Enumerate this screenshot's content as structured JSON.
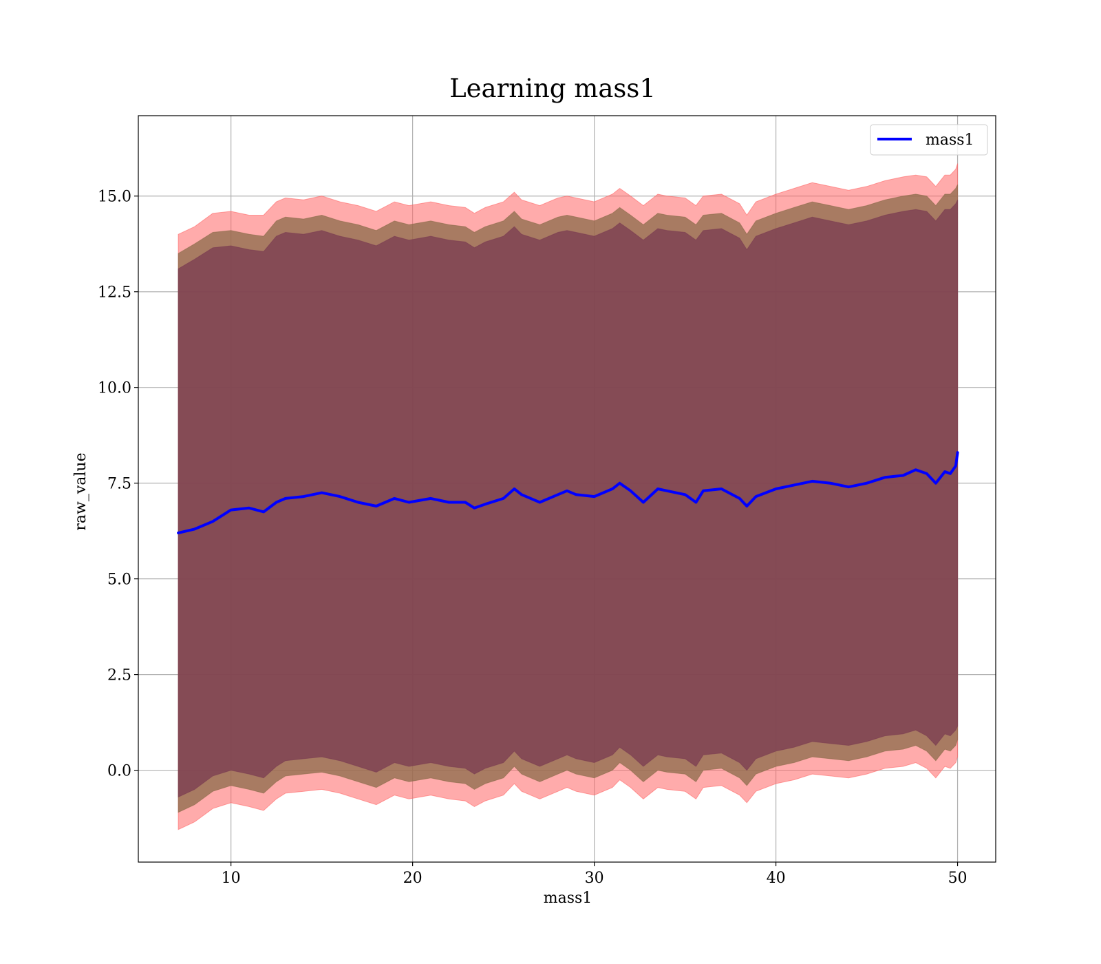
{
  "chart_data": {
    "type": "area",
    "title": "Learning mass1",
    "xlabel": "mass1",
    "ylabel": "raw_value",
    "xlim": [
      4.9,
      52.1
    ],
    "ylim": [
      -2.4,
      17.1
    ],
    "x_ticks": [
      10,
      20,
      30,
      40,
      50
    ],
    "y_ticks": [
      0.0,
      2.5,
      5.0,
      7.5,
      10.0,
      12.5,
      15.0
    ],
    "x_tick_labels": [
      "10",
      "20",
      "30",
      "40",
      "50"
    ],
    "y_tick_labels": [
      "0.0",
      "2.5",
      "5.0",
      "7.5",
      "10.0",
      "12.5",
      "15.0"
    ],
    "grid": true,
    "legend_position": "top-right",
    "x": [
      7.1,
      8,
      9,
      10,
      11,
      11.8,
      12.5,
      13,
      14,
      15,
      16,
      17,
      18,
      19,
      19.8,
      21,
      22,
      22.9,
      23.4,
      24,
      25,
      25.6,
      26,
      27,
      28,
      28.5,
      29,
      30,
      31,
      31.4,
      32,
      32.7,
      33.5,
      34,
      35,
      35.6,
      36,
      37,
      38,
      38.4,
      38.9,
      40,
      41,
      42,
      43,
      44,
      45,
      46,
      47,
      47.7,
      48.3,
      48.8,
      49.3,
      49.6,
      49.9,
      50
    ],
    "series": [
      {
        "name": "mass1",
        "color": "#0000ff",
        "values": [
          6.2,
          6.3,
          6.5,
          6.8,
          6.85,
          6.75,
          7.0,
          7.1,
          7.15,
          7.25,
          7.15,
          7.0,
          6.9,
          7.1,
          7.0,
          7.1,
          7.0,
          7.0,
          6.85,
          6.95,
          7.1,
          7.35,
          7.2,
          7.0,
          7.2,
          7.3,
          7.2,
          7.15,
          7.35,
          7.5,
          7.3,
          7.0,
          7.35,
          7.3,
          7.2,
          7.0,
          7.3,
          7.35,
          7.1,
          6.9,
          7.15,
          7.35,
          7.45,
          7.55,
          7.5,
          7.4,
          7.5,
          7.65,
          7.7,
          7.85,
          7.75,
          7.5,
          7.8,
          7.75,
          7.95,
          8.3
        ]
      }
    ],
    "bands": [
      {
        "color": "#ff6666",
        "upper": [
          14.0,
          14.2,
          14.55,
          14.6,
          14.5,
          14.5,
          14.85,
          14.95,
          14.9,
          15.0,
          14.85,
          14.75,
          14.6,
          14.85,
          14.75,
          14.85,
          14.75,
          14.7,
          14.55,
          14.7,
          14.85,
          15.1,
          14.9,
          14.75,
          14.95,
          15.0,
          14.95,
          14.85,
          15.05,
          15.2,
          15.0,
          14.75,
          15.05,
          15.0,
          14.95,
          14.75,
          15.0,
          15.05,
          14.8,
          14.5,
          14.85,
          15.05,
          15.2,
          15.35,
          15.25,
          15.15,
          15.25,
          15.4,
          15.5,
          15.55,
          15.5,
          15.25,
          15.55,
          15.55,
          15.7,
          15.85
        ],
        "lower": [
          -1.55,
          -1.35,
          -1.0,
          -0.85,
          -0.95,
          -1.05,
          -0.75,
          -0.6,
          -0.55,
          -0.5,
          -0.6,
          -0.75,
          -0.9,
          -0.65,
          -0.75,
          -0.65,
          -0.75,
          -0.8,
          -0.95,
          -0.8,
          -0.65,
          -0.35,
          -0.55,
          -0.75,
          -0.55,
          -0.45,
          -0.55,
          -0.65,
          -0.45,
          -0.25,
          -0.45,
          -0.75,
          -0.45,
          -0.5,
          -0.55,
          -0.75,
          -0.45,
          -0.4,
          -0.65,
          -0.85,
          -0.55,
          -0.35,
          -0.25,
          -0.1,
          -0.15,
          -0.2,
          -0.1,
          0.05,
          0.1,
          0.2,
          0.05,
          -0.2,
          0.1,
          0.05,
          0.2,
          0.35
        ]
      },
      {
        "color": "#8b6b4a",
        "upper": [
          13.5,
          13.75,
          14.05,
          14.1,
          14.0,
          13.95,
          14.35,
          14.45,
          14.4,
          14.5,
          14.35,
          14.25,
          14.1,
          14.35,
          14.25,
          14.35,
          14.25,
          14.2,
          14.05,
          14.2,
          14.35,
          14.6,
          14.4,
          14.25,
          14.45,
          14.5,
          14.45,
          14.35,
          14.55,
          14.7,
          14.5,
          14.25,
          14.55,
          14.5,
          14.45,
          14.25,
          14.5,
          14.55,
          14.3,
          14.0,
          14.35,
          14.55,
          14.7,
          14.85,
          14.75,
          14.65,
          14.75,
          14.9,
          15.0,
          15.05,
          15.0,
          14.75,
          15.05,
          15.05,
          15.2,
          15.3
        ],
        "lower": [
          -1.1,
          -0.9,
          -0.55,
          -0.4,
          -0.5,
          -0.6,
          -0.3,
          -0.15,
          -0.1,
          -0.05,
          -0.15,
          -0.3,
          -0.45,
          -0.2,
          -0.3,
          -0.2,
          -0.3,
          -0.35,
          -0.5,
          -0.35,
          -0.2,
          0.1,
          -0.1,
          -0.3,
          -0.1,
          0.0,
          -0.1,
          -0.2,
          0.0,
          0.2,
          0.0,
          -0.3,
          0.0,
          -0.05,
          -0.1,
          -0.3,
          0.0,
          0.05,
          -0.2,
          -0.4,
          -0.1,
          0.1,
          0.2,
          0.35,
          0.3,
          0.25,
          0.35,
          0.5,
          0.55,
          0.65,
          0.5,
          0.25,
          0.55,
          0.5,
          0.65,
          0.8
        ]
      },
      {
        "color": "#7a3b52",
        "upper": [
          13.1,
          13.35,
          13.65,
          13.7,
          13.6,
          13.55,
          13.95,
          14.05,
          14.0,
          14.1,
          13.95,
          13.85,
          13.7,
          13.95,
          13.85,
          13.95,
          13.85,
          13.8,
          13.65,
          13.8,
          13.95,
          14.2,
          14.0,
          13.85,
          14.05,
          14.1,
          14.05,
          13.95,
          14.15,
          14.3,
          14.1,
          13.85,
          14.15,
          14.1,
          14.05,
          13.85,
          14.1,
          14.15,
          13.9,
          13.6,
          13.95,
          14.15,
          14.3,
          14.45,
          14.35,
          14.25,
          14.35,
          14.5,
          14.6,
          14.65,
          14.6,
          14.35,
          14.65,
          14.65,
          14.8,
          14.9
        ],
        "lower": [
          -0.7,
          -0.5,
          -0.15,
          0.0,
          -0.1,
          -0.2,
          0.1,
          0.25,
          0.3,
          0.35,
          0.25,
          0.1,
          -0.05,
          0.2,
          0.1,
          0.2,
          0.1,
          0.05,
          -0.1,
          0.05,
          0.2,
          0.5,
          0.3,
          0.1,
          0.3,
          0.4,
          0.3,
          0.2,
          0.4,
          0.6,
          0.4,
          0.1,
          0.4,
          0.35,
          0.3,
          0.1,
          0.4,
          0.45,
          0.2,
          0.0,
          0.3,
          0.5,
          0.6,
          0.75,
          0.7,
          0.65,
          0.75,
          0.9,
          0.95,
          1.05,
          0.9,
          0.65,
          0.95,
          0.9,
          1.05,
          1.15
        ]
      }
    ]
  }
}
